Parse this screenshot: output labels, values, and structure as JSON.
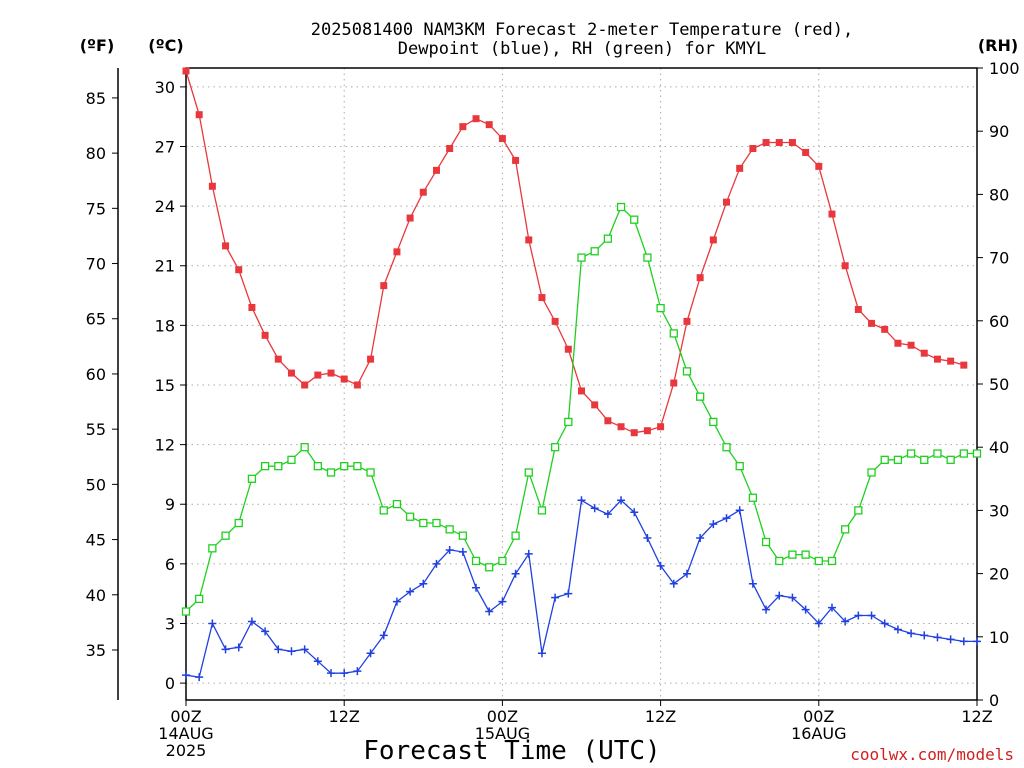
{
  "chart_data": {
    "type": "line",
    "title_line1": "2025081400 NAM3KM Forecast 2-meter Temperature (red),",
    "title_line2": "Dewpoint (blue), RH (green) for KMYL",
    "xlabel": "Forecast Time (UTC)",
    "credit": "coolwx.com/models",
    "unit_f": "(ºF)",
    "unit_c": "(ºC)",
    "unit_rh": "(RH)",
    "x_ticks": [
      {
        "hour": 0,
        "labels": [
          "00Z",
          "14AUG",
          "2025"
        ]
      },
      {
        "hour": 12,
        "labels": [
          "12Z"
        ]
      },
      {
        "hour": 24,
        "labels": [
          "00Z",
          "15AUG"
        ]
      },
      {
        "hour": 36,
        "labels": [
          "12Z"
        ]
      },
      {
        "hour": 48,
        "labels": [
          "00Z",
          "16AUG"
        ]
      },
      {
        "hour": 60,
        "labels": [
          "12Z"
        ]
      }
    ],
    "xlim": [
      0,
      60
    ],
    "ylim_c": [
      -0.85,
      30.95
    ],
    "ylim_rh": [
      0,
      100
    ],
    "c_ticks": [
      0,
      3,
      6,
      9,
      12,
      15,
      18,
      21,
      24,
      27,
      30
    ],
    "c_tick_labels": [
      "0",
      "3",
      "6",
      "9",
      "12",
      "15",
      "18",
      "21",
      "24",
      "27",
      "30"
    ],
    "f_ticks": [
      35,
      40,
      45,
      50,
      55,
      60,
      65,
      70,
      75,
      80,
      85
    ],
    "f_tick_labels": [
      "35",
      "40",
      "45",
      "50",
      "55",
      "60",
      "65",
      "70",
      "75",
      "80",
      "85"
    ],
    "rh_ticks": [
      0,
      10,
      20,
      30,
      40,
      50,
      60,
      70,
      80,
      90,
      100
    ],
    "rh_tick_labels": [
      "0",
      "10",
      "20",
      "30",
      "40",
      "50",
      "60",
      "70",
      "80",
      "90",
      "100"
    ],
    "grid": true,
    "series": [
      {
        "name": "2-meter Temperature",
        "axis": "celsius",
        "color": "#e8383d",
        "marker": "filled-square",
        "values": [
          30.8,
          28.6,
          25.0,
          22.0,
          20.8,
          18.9,
          17.5,
          16.3,
          15.6,
          15.0,
          15.5,
          15.6,
          15.3,
          15.0,
          16.3,
          20.0,
          21.7,
          23.4,
          24.7,
          25.8,
          26.9,
          28.0,
          28.4,
          28.1,
          27.4,
          26.3,
          22.3,
          19.4,
          18.2,
          16.8,
          14.7,
          14.0,
          13.2,
          12.9,
          12.6,
          12.7,
          12.9,
          15.1,
          18.2,
          20.4,
          22.3,
          24.2,
          25.9,
          26.9,
          27.2,
          27.2,
          27.2,
          26.7,
          26.0,
          23.6,
          21.0,
          18.8,
          18.1,
          17.8,
          17.1,
          17.0,
          16.6,
          16.3,
          16.2,
          16.0
        ],
        "hours": [
          0,
          1,
          2,
          3,
          4,
          5,
          6,
          7,
          8,
          9,
          10,
          11,
          12,
          13,
          14,
          15,
          16,
          17,
          18,
          19,
          20,
          21,
          22,
          23,
          24,
          25,
          26,
          27,
          28,
          29,
          30,
          31,
          32,
          33,
          34,
          35,
          36,
          37,
          38,
          39,
          40,
          41,
          42,
          43,
          44,
          45,
          46,
          47,
          48,
          49,
          50,
          51,
          52,
          53,
          54,
          55,
          56,
          57,
          58,
          59
        ]
      },
      {
        "name": "Dewpoint",
        "axis": "celsius",
        "color": "#2040e0",
        "marker": "plus",
        "hours": [
          0,
          1,
          2,
          3,
          4,
          5,
          6,
          7,
          8,
          9,
          10,
          11,
          12,
          13,
          14,
          15,
          16,
          17,
          18,
          19,
          20,
          21,
          22,
          23,
          24,
          25,
          26,
          27,
          28,
          29,
          30,
          31,
          32,
          33,
          34,
          35,
          36,
          37,
          38,
          39,
          40,
          41,
          42,
          43,
          44,
          45,
          46,
          47,
          48,
          49,
          50,
          51,
          52,
          53,
          54,
          55,
          56,
          57,
          58,
          59,
          60
        ],
        "values": [
          0.4,
          0.3,
          3.0,
          1.7,
          1.8,
          3.1,
          2.6,
          1.7,
          1.6,
          1.7,
          1.1,
          0.5,
          0.5,
          0.6,
          1.5,
          2.4,
          4.1,
          4.6,
          5.0,
          6.0,
          6.7,
          6.6,
          4.8,
          3.6,
          4.1,
          5.5,
          6.5,
          1.5,
          4.3,
          4.5,
          9.2,
          8.8,
          8.5,
          9.2,
          8.6,
          7.3,
          5.9,
          5.0,
          5.5,
          7.3,
          8.0,
          8.3,
          8.7,
          5.0,
          3.7,
          4.4,
          4.3,
          3.7,
          3.0,
          3.8,
          3.1,
          3.4,
          3.4,
          3.0,
          2.7,
          2.5,
          2.4,
          2.3,
          2.2,
          2.1,
          2.1
        ]
      },
      {
        "name": "RH",
        "axis": "rh",
        "color": "#20d020",
        "marker": "open-square",
        "hours": [
          0,
          1,
          2,
          3,
          4,
          5,
          6,
          7,
          8,
          9,
          10,
          11,
          12,
          13,
          14,
          15,
          16,
          17,
          18,
          19,
          20,
          21,
          22,
          23,
          24,
          25,
          26,
          27,
          28,
          29,
          30,
          31,
          32,
          33,
          34,
          35,
          36,
          37,
          38,
          39,
          40,
          41,
          42,
          43,
          44,
          45,
          46,
          47,
          48,
          49,
          50,
          51,
          52,
          53,
          54,
          55,
          56,
          57,
          58,
          59,
          60
        ],
        "values": [
          14,
          16,
          24,
          26,
          28,
          35,
          37,
          37,
          38,
          40,
          37,
          36,
          37,
          37,
          36,
          30,
          31,
          29,
          28,
          28,
          27,
          26,
          22,
          21,
          22,
          26,
          36,
          30,
          40,
          44,
          70,
          71,
          73,
          78,
          76,
          70,
          62,
          58,
          52,
          48,
          44,
          40,
          37,
          32,
          25,
          22,
          23,
          23,
          22,
          22,
          27,
          30,
          36,
          38,
          38,
          39,
          38,
          39,
          38,
          39,
          39
        ]
      }
    ]
  }
}
